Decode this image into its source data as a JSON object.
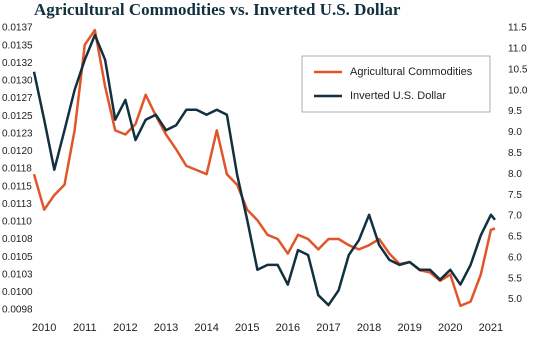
{
  "chart_data": {
    "type": "line",
    "title": "Agricultural Commodities vs. Inverted U.S. Dollar",
    "x": [
      2009.75,
      2010.0,
      2010.25,
      2010.5,
      2010.75,
      2011.0,
      2011.25,
      2011.5,
      2011.75,
      2012.0,
      2012.25,
      2012.5,
      2012.75,
      2013.0,
      2013.25,
      2013.5,
      2013.75,
      2014.0,
      2014.25,
      2014.5,
      2014.75,
      2015.0,
      2015.25,
      2015.5,
      2015.75,
      2016.0,
      2016.25,
      2016.5,
      2016.75,
      2017.0,
      2017.25,
      2017.5,
      2017.75,
      2018.0,
      2018.25,
      2018.5,
      2018.75,
      2019.0,
      2019.25,
      2019.5,
      2019.75,
      2020.0,
      2020.25,
      2020.5,
      2020.75,
      2021.0,
      2021.1
    ],
    "series": [
      {
        "name": "Agricultural Commodities",
        "color": "#e0562a",
        "axis": "y2",
        "values": [
          8.0,
          7.15,
          7.5,
          7.75,
          9.05,
          11.1,
          11.45,
          10.1,
          9.05,
          8.95,
          9.2,
          9.9,
          9.4,
          8.95,
          8.6,
          8.2,
          8.1,
          8.0,
          9.05,
          8.0,
          7.75,
          7.15,
          6.9,
          6.55,
          6.45,
          6.1,
          6.55,
          6.45,
          6.2,
          6.45,
          6.45,
          6.3,
          6.2,
          6.3,
          6.45,
          6.1,
          5.85,
          5.9,
          5.7,
          5.65,
          5.45,
          5.6,
          4.85,
          4.95,
          5.6,
          6.67,
          6.7
        ]
      },
      {
        "name": "Inverted U.S. Dollar",
        "color": "#12303f",
        "values": [
          0.01313,
          0.01245,
          0.01174,
          0.0123,
          0.01287,
          0.0133,
          0.01365,
          0.0133,
          0.01245,
          0.01273,
          0.01216,
          0.01245,
          0.01252,
          0.0123,
          0.01237,
          0.01259,
          0.01259,
          0.01252,
          0.01259,
          0.01252,
          0.01167,
          0.01103,
          0.01032,
          0.01039,
          0.01039,
          0.01011,
          0.0106,
          0.01053,
          0.00996,
          0.00982,
          0.01003,
          0.01053,
          0.01074,
          0.0111,
          0.01067,
          0.01046,
          0.01039,
          0.01043,
          0.01032,
          0.01032,
          0.01018,
          0.01032,
          0.01011,
          0.01039,
          0.01081,
          0.0111,
          0.01103
        ]
      }
    ],
    "xlim": [
      2009.75,
      2021.15
    ],
    "xticks": [
      2010,
      2011,
      2012,
      2013,
      2014,
      2015,
      2016,
      2017,
      2018,
      2019,
      2020,
      2021
    ],
    "ylim": [
      0.00975,
      0.01375
    ],
    "yticks": [
      {
        "value": 0.00975,
        "label": "0.0098"
      },
      {
        "value": 0.01,
        "label": "0.0100"
      },
      {
        "value": 0.01025,
        "label": "0.0103"
      },
      {
        "value": 0.0105,
        "label": "0.0105"
      },
      {
        "value": 0.01075,
        "label": "0.0108"
      },
      {
        "value": 0.011,
        "label": "0.0110"
      },
      {
        "value": 0.01125,
        "label": "0.0113"
      },
      {
        "value": 0.0115,
        "label": "0.0115"
      },
      {
        "value": 0.01175,
        "label": "0.0118"
      },
      {
        "value": 0.012,
        "label": "0.0120"
      },
      {
        "value": 0.01225,
        "label": "0.0123"
      },
      {
        "value": 0.0125,
        "label": "0.0125"
      },
      {
        "value": 0.01275,
        "label": "0.0127"
      },
      {
        "value": 0.013,
        "label": "0.0130"
      },
      {
        "value": 0.01325,
        "label": "0.0132"
      },
      {
        "value": 0.0135,
        "label": "0.0135"
      },
      {
        "value": 0.01375,
        "label": "0.0137"
      }
    ],
    "y2lim": [
      4.75,
      11.5
    ],
    "y2ticks": [
      {
        "value": 5,
        "label": "5.0"
      },
      5.5,
      {
        "value": 6,
        "label": "6.0"
      },
      6.5,
      {
        "value": 7,
        "label": "7.0"
      },
      7.5,
      {
        "value": 8,
        "label": "8.0"
      },
      8.5,
      {
        "value": 9,
        "label": "9.0"
      },
      9.5,
      {
        "value": 10,
        "label": "10.0"
      },
      10.5,
      {
        "value": 11,
        "label": "11.0"
      },
      11.5
    ],
    "legend": "upper right"
  }
}
